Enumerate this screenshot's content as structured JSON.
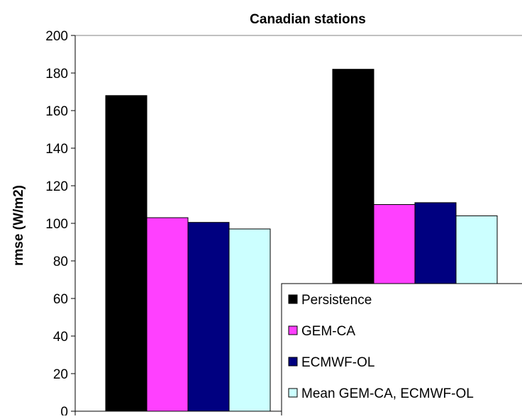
{
  "chart_data": {
    "type": "bar",
    "title": "Canadian stations",
    "xlabel": "",
    "ylabel": "rmse (W/m2)",
    "ylim": [
      0,
      200
    ],
    "yticks": [
      0,
      20,
      40,
      60,
      80,
      100,
      120,
      140,
      160,
      180,
      200
    ],
    "categories": [
      "",
      ""
    ],
    "series": [
      {
        "name": "Persistence",
        "color": "#000000",
        "values": [
          168,
          182
        ]
      },
      {
        "name": "GEM-CA",
        "color": "#ff40ff",
        "values": [
          103,
          110
        ]
      },
      {
        "name": "ECMWF-OL",
        "color": "#000080",
        "values": [
          100.5,
          111
        ]
      },
      {
        "name": "Mean GEM-CA, ECMWF-OL",
        "color": "#ccffff",
        "values": [
          97,
          104
        ]
      }
    ],
    "legend": "bottom-right",
    "grid": false
  }
}
